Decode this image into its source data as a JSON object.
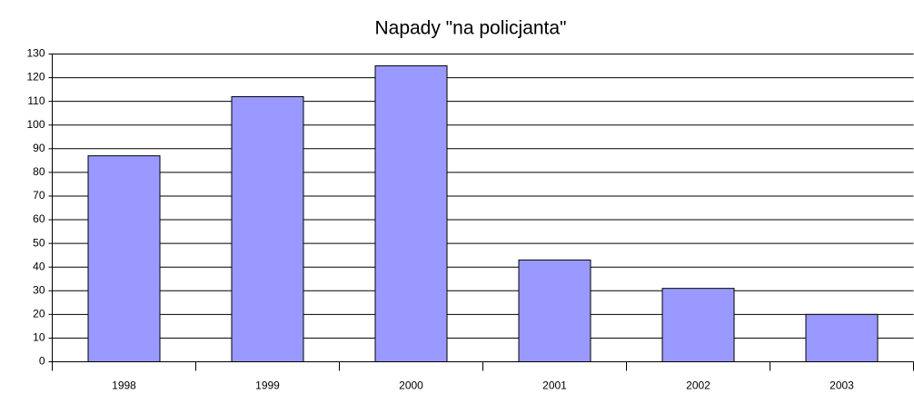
{
  "chart_data": {
    "type": "bar",
    "title": "Napady \"na policjanta\"",
    "categories": [
      "1998",
      "1999",
      "2000",
      "2001",
      "2002",
      "2003"
    ],
    "values": [
      87,
      112,
      125,
      43,
      31,
      20
    ],
    "color": "#9999ff",
    "ylim": [
      0,
      130
    ],
    "yticks": [
      0,
      10,
      20,
      30,
      40,
      50,
      60,
      70,
      80,
      90,
      100,
      110,
      120,
      130
    ],
    "grid": true
  }
}
